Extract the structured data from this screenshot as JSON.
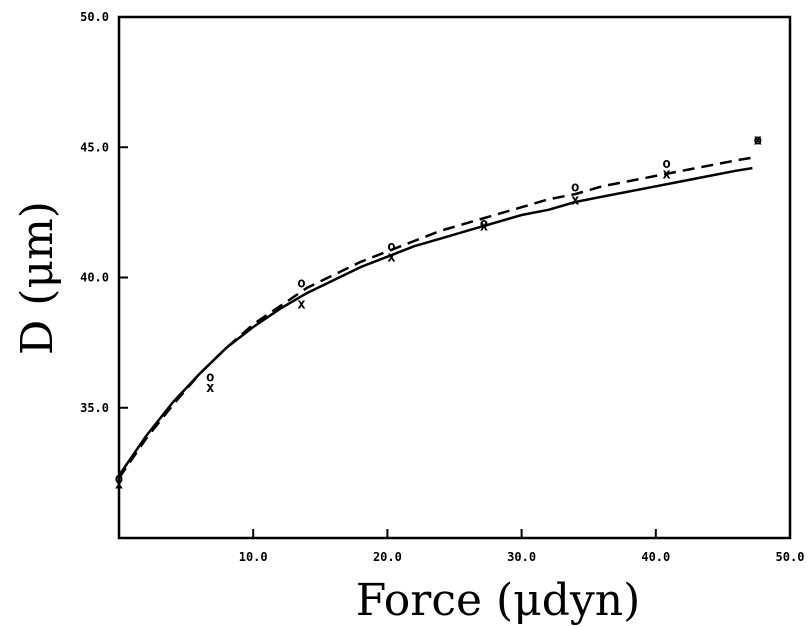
{
  "chart_data": {
    "type": "scatter",
    "xlabel": "Force (μdyn)",
    "ylabel": "D (μm)",
    "xlim": [
      0,
      50
    ],
    "ylim": [
      30,
      50
    ],
    "xticks": [
      10,
      20,
      30,
      40,
      50
    ],
    "xtick_labels": [
      "10.0",
      "20.0",
      "30.0",
      "40.0",
      "50.0"
    ],
    "yticks": [
      35,
      40,
      45,
      50
    ],
    "ytick_labels": [
      "35.0",
      "40.0",
      "45.0",
      "50.0"
    ],
    "grid": false,
    "series": [
      {
        "marker": "o",
        "points": [
          {
            "x": 0.0,
            "y": 32.3
          },
          {
            "x": 6.8,
            "y": 36.2
          },
          {
            "x": 13.6,
            "y": 39.8
          },
          {
            "x": 20.3,
            "y": 41.2
          },
          {
            "x": 27.2,
            "y": 42.1
          },
          {
            "x": 34.0,
            "y": 43.5
          },
          {
            "x": 40.8,
            "y": 44.4
          },
          {
            "x": 47.6,
            "y": 45.3
          }
        ]
      },
      {
        "marker": "x",
        "points": [
          {
            "x": 0.0,
            "y": 32.1
          },
          {
            "x": 6.8,
            "y": 35.8
          },
          {
            "x": 13.6,
            "y": 39.0
          },
          {
            "x": 20.3,
            "y": 40.8
          },
          {
            "x": 27.2,
            "y": 42.0
          },
          {
            "x": 34.0,
            "y": 43.0
          },
          {
            "x": 40.8,
            "y": 44.0
          },
          {
            "x": 47.6,
            "y": 45.3
          }
        ]
      }
    ],
    "curves": [
      {
        "style": "solid",
        "points": [
          [
            0,
            32.4
          ],
          [
            2,
            33.9
          ],
          [
            4,
            35.2
          ],
          [
            6,
            36.3
          ],
          [
            8,
            37.3
          ],
          [
            10,
            38.1
          ],
          [
            12,
            38.8
          ],
          [
            14,
            39.4
          ],
          [
            16,
            39.9
          ],
          [
            18,
            40.4
          ],
          [
            20,
            40.8
          ],
          [
            22,
            41.2
          ],
          [
            24,
            41.5
          ],
          [
            26,
            41.8
          ],
          [
            28,
            42.1
          ],
          [
            30,
            42.4
          ],
          [
            32,
            42.6
          ],
          [
            34,
            42.9
          ],
          [
            36,
            43.1
          ],
          [
            38,
            43.3
          ],
          [
            40,
            43.5
          ],
          [
            42,
            43.7
          ],
          [
            44,
            43.9
          ],
          [
            46,
            44.1
          ],
          [
            47.2,
            44.2
          ]
        ]
      },
      {
        "style": "dashed",
        "points": [
          [
            0,
            32.3
          ],
          [
            2,
            33.8
          ],
          [
            4,
            35.1
          ],
          [
            6,
            36.3
          ],
          [
            8,
            37.3
          ],
          [
            10,
            38.2
          ],
          [
            12,
            38.9
          ],
          [
            14,
            39.6
          ],
          [
            16,
            40.1
          ],
          [
            18,
            40.6
          ],
          [
            20,
            41.0
          ],
          [
            22,
            41.4
          ],
          [
            24,
            41.8
          ],
          [
            26,
            42.1
          ],
          [
            28,
            42.4
          ],
          [
            30,
            42.7
          ],
          [
            32,
            43.0
          ],
          [
            34,
            43.2
          ],
          [
            36,
            43.5
          ],
          [
            38,
            43.7
          ],
          [
            40,
            43.9
          ],
          [
            42,
            44.1
          ],
          [
            44,
            44.3
          ],
          [
            46,
            44.5
          ],
          [
            47.2,
            44.6
          ]
        ]
      }
    ]
  }
}
